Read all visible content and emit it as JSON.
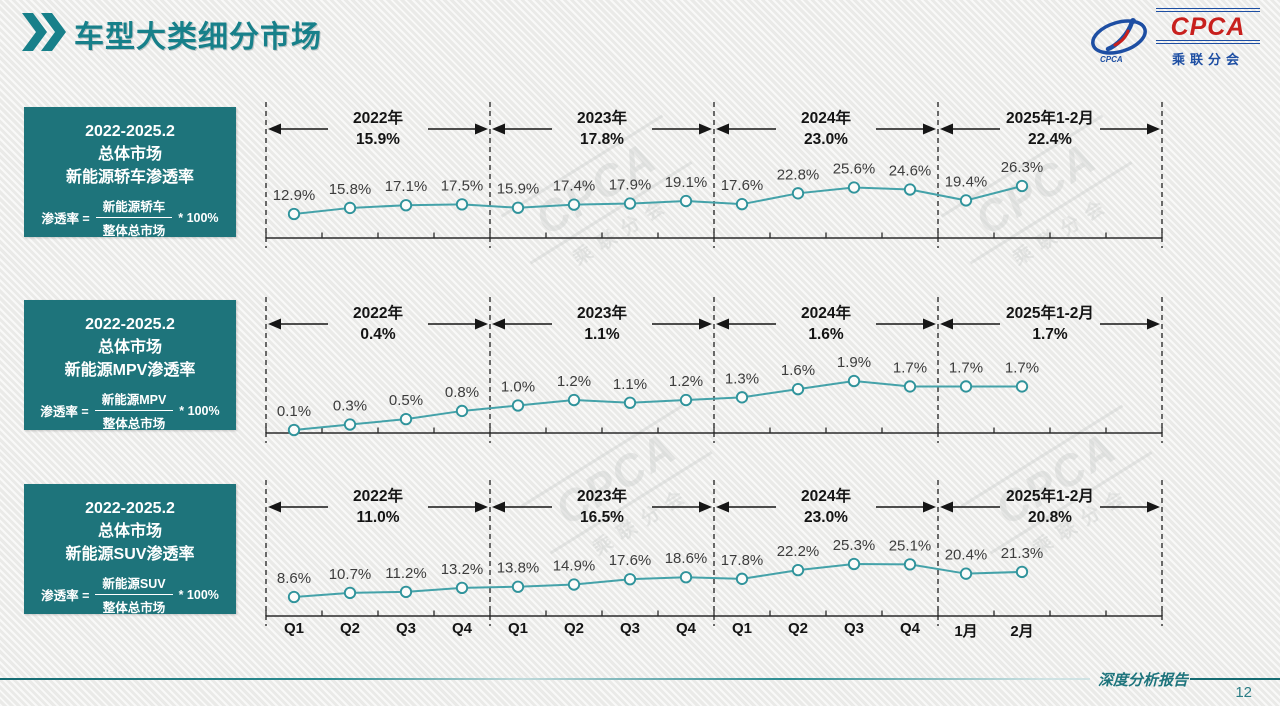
{
  "header": {
    "title": "车型大类细分市场"
  },
  "logo": {
    "cpca": "CPCA",
    "subtitle": "乘联分会"
  },
  "watermark": {
    "line1": "CPCA",
    "line2": "乘联分会"
  },
  "x_axis_labels": [
    "Q1",
    "Q2",
    "Q3",
    "Q4",
    "Q1",
    "Q2",
    "Q3",
    "Q4",
    "Q1",
    "Q2",
    "Q3",
    "Q4",
    "1月",
    "2月"
  ],
  "chart_data": [
    {
      "type": "line",
      "title": "2022-2025.2 总体市场 新能源轿车渗透率",
      "box": {
        "title_lines": [
          "2022-2025.2",
          "总体市场",
          "新能源轿车渗透率"
        ],
        "formula_prefix": "渗透率 =",
        "formula_numerator": "新能源轿车",
        "formula_denominator": "整体总市场",
        "formula_suffix": "* 100%"
      },
      "x": [
        "2022-Q1",
        "2022-Q2",
        "2022-Q3",
        "2022-Q4",
        "2023-Q1",
        "2023-Q2",
        "2023-Q3",
        "2023-Q4",
        "2024-Q1",
        "2024-Q2",
        "2024-Q3",
        "2024-Q4",
        "2025-1月",
        "2025-2月"
      ],
      "values": [
        12.9,
        15.8,
        17.1,
        17.5,
        15.9,
        17.4,
        17.9,
        19.1,
        17.6,
        22.8,
        25.6,
        24.6,
        19.4,
        26.3
      ],
      "unit": "%",
      "legend_position": "none",
      "grid": false,
      "segments": [
        {
          "label": "2022年",
          "avg": "15.9%"
        },
        {
          "label": "2023年",
          "avg": "17.8%"
        },
        {
          "label": "2024年",
          "avg": "23.0%"
        },
        {
          "label": "2025年1-2月",
          "avg": "22.4%"
        }
      ]
    },
    {
      "type": "line",
      "title": "2022-2025.2 总体市场 新能源MPV渗透率",
      "box": {
        "title_lines": [
          "2022-2025.2",
          "总体市场",
          "新能源MPV渗透率"
        ],
        "formula_prefix": "渗透率 =",
        "formula_numerator": "新能源MPV",
        "formula_denominator": "整体总市场",
        "formula_suffix": "* 100%"
      },
      "x": [
        "2022-Q1",
        "2022-Q2",
        "2022-Q3",
        "2022-Q4",
        "2023-Q1",
        "2023-Q2",
        "2023-Q3",
        "2023-Q4",
        "2024-Q1",
        "2024-Q2",
        "2024-Q3",
        "2024-Q4",
        "2025-1月",
        "2025-2月"
      ],
      "values": [
        0.1,
        0.3,
        0.5,
        0.8,
        1.0,
        1.2,
        1.1,
        1.2,
        1.3,
        1.6,
        1.9,
        1.7,
        1.7,
        1.7
      ],
      "unit": "%",
      "legend_position": "none",
      "grid": false,
      "segments": [
        {
          "label": "2022年",
          "avg": "0.4%"
        },
        {
          "label": "2023年",
          "avg": "1.1%"
        },
        {
          "label": "2024年",
          "avg": "1.6%"
        },
        {
          "label": "2025年1-2月",
          "avg": "1.7%"
        }
      ]
    },
    {
      "type": "line",
      "title": "2022-2025.2 总体市场 新能源SUV渗透率",
      "box": {
        "title_lines": [
          "2022-2025.2",
          "总体市场",
          "新能源SUV渗透率"
        ],
        "formula_prefix": "渗透率 =",
        "formula_numerator": "新能源SUV",
        "formula_denominator": "整体总市场",
        "formula_suffix": "* 100%"
      },
      "x": [
        "2022-Q1",
        "2022-Q2",
        "2022-Q3",
        "2022-Q4",
        "2023-Q1",
        "2023-Q2",
        "2023-Q3",
        "2023-Q4",
        "2024-Q1",
        "2024-Q2",
        "2024-Q3",
        "2024-Q4",
        "2025-1月",
        "2025-2月"
      ],
      "values": [
        8.6,
        10.7,
        11.2,
        13.2,
        13.8,
        14.9,
        17.6,
        18.6,
        17.8,
        22.2,
        25.3,
        25.1,
        20.4,
        21.3
      ],
      "unit": "%",
      "legend_position": "none",
      "grid": false,
      "segments": [
        {
          "label": "2022年",
          "avg": "11.0%"
        },
        {
          "label": "2023年",
          "avg": "16.5%"
        },
        {
          "label": "2024年",
          "avg": "23.0%"
        },
        {
          "label": "2025年1-2月",
          "avg": "20.8%"
        }
      ]
    }
  ],
  "footer": {
    "report_label": "深度分析报告",
    "page_number": "12"
  },
  "colors": {
    "accent_teal": "#17808a",
    "box_teal": "#1e747b",
    "line_teal": "#44a2a9",
    "marker_stroke": "#2f939b",
    "annotation_black": "#141414",
    "label_gray": "#3d3d3d",
    "logo_blue": "#1d4ea3",
    "logo_red": "#c8201d"
  }
}
